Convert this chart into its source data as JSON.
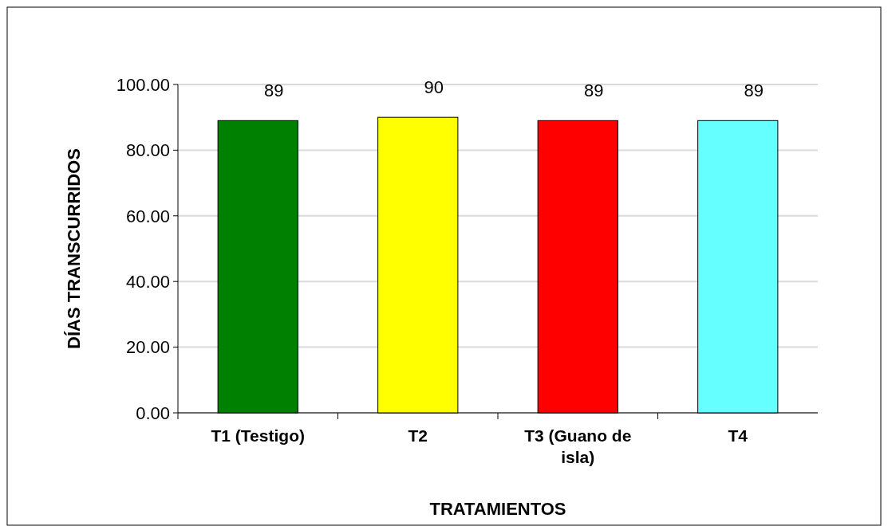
{
  "chart_data": {
    "type": "bar",
    "xlabel": "TRATAMIENTOS",
    "ylabel": "DÍAS TRANSCURRIDOS",
    "categories": [
      "T1 (Testigo)",
      "T2",
      "T3 (Guano de isla)",
      "T4"
    ],
    "values": [
      89,
      90,
      89,
      89
    ],
    "colors": [
      "#008000",
      "#ffff00",
      "#ff0000",
      "#66ffff"
    ],
    "ylim": [
      0,
      100
    ],
    "yticks": [
      {
        "value": 0,
        "label": "0.00"
      },
      {
        "value": 20,
        "label": "20.00"
      },
      {
        "value": 40,
        "label": "40.00"
      },
      {
        "value": 60,
        "label": "60.00"
      },
      {
        "value": 80,
        "label": "80.00"
      },
      {
        "value": 100,
        "label": "100.00"
      }
    ],
    "grid": "y",
    "data_labels": true
  }
}
